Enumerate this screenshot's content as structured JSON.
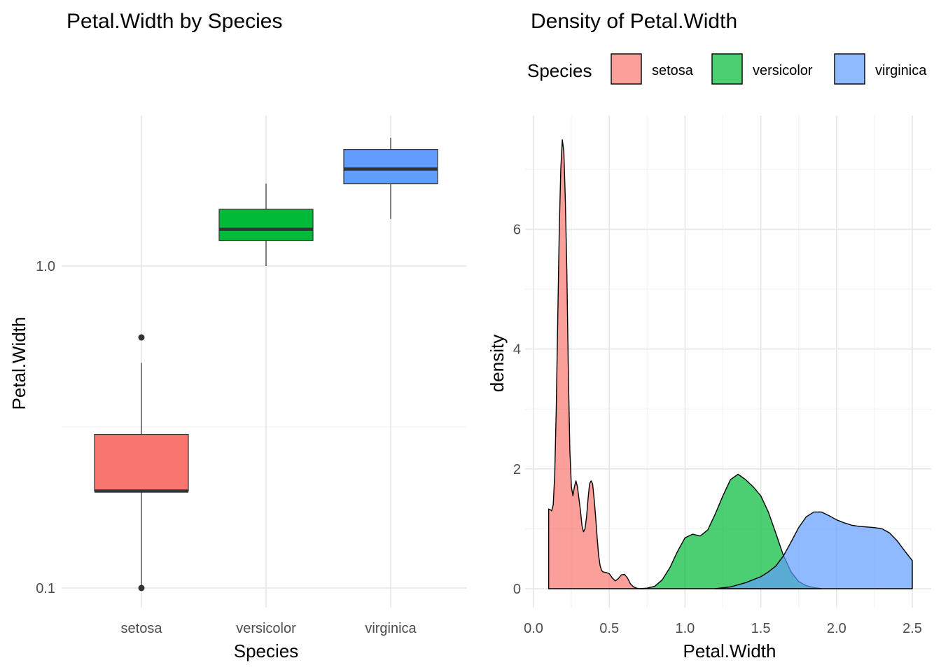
{
  "chart_data": [
    {
      "type": "box",
      "title": "Petal.Width by Species",
      "xlabel": "Species",
      "ylabel": "Petal.Width",
      "y_scale": "log10",
      "yticks": [
        0.1,
        1.0
      ],
      "ytick_labels": [
        "0.1",
        "1.0"
      ],
      "categories": [
        "setosa",
        "versicolor",
        "virginica"
      ],
      "colors": [
        "#F8766D",
        "#00BA38",
        "#619CFF"
      ],
      "boxes": [
        {
          "name": "setosa",
          "min": 0.1,
          "q1": 0.2,
          "median": 0.2,
          "q3": 0.3,
          "max": 0.5,
          "outliers": [
            0.6,
            0.1
          ]
        },
        {
          "name": "versicolor",
          "min": 1.0,
          "q1": 1.2,
          "median": 1.3,
          "q3": 1.5,
          "max": 1.8,
          "outliers": []
        },
        {
          "name": "virginica",
          "min": 1.4,
          "q1": 1.8,
          "median": 2.0,
          "q3": 2.3,
          "max": 2.5,
          "outliers": []
        }
      ],
      "grid": true
    },
    {
      "type": "area",
      "title": "Density of Petal.Width",
      "xlabel": "Petal.Width",
      "ylabel": "density",
      "xlim": [
        0.0,
        2.5
      ],
      "ylim": [
        0,
        7.5
      ],
      "xticks": [
        0.0,
        0.5,
        1.0,
        1.5,
        2.0,
        2.5
      ],
      "xtick_labels": [
        "0.0",
        "0.5",
        "1.0",
        "1.5",
        "2.0",
        "2.5"
      ],
      "yticks": [
        0,
        2,
        4,
        6
      ],
      "ytick_labels": [
        "0",
        "2",
        "4",
        "6"
      ],
      "legend": {
        "title": "Species",
        "position": "top",
        "entries": [
          "setosa",
          "versicolor",
          "virginica"
        ]
      },
      "grid": true,
      "series": [
        {
          "name": "setosa",
          "color": "#F8766D",
          "points": [
            [
              0.1,
              1.33
            ],
            [
              0.11,
              1.32
            ],
            [
              0.12,
              1.3
            ],
            [
              0.13,
              1.4
            ],
            [
              0.14,
              1.9
            ],
            [
              0.15,
              3.0
            ],
            [
              0.16,
              4.5
            ],
            [
              0.17,
              6.0
            ],
            [
              0.18,
              7.0
            ],
            [
              0.19,
              7.49
            ],
            [
              0.2,
              7.3
            ],
            [
              0.21,
              6.5
            ],
            [
              0.22,
              5.3
            ],
            [
              0.23,
              3.6
            ],
            [
              0.24,
              2.3
            ],
            [
              0.25,
              1.7
            ],
            [
              0.26,
              1.55
            ],
            [
              0.27,
              1.7
            ],
            [
              0.28,
              1.8
            ],
            [
              0.29,
              1.7
            ],
            [
              0.3,
              1.5
            ],
            [
              0.31,
              1.3
            ],
            [
              0.32,
              1.05
            ],
            [
              0.33,
              0.95
            ],
            [
              0.34,
              1.0
            ],
            [
              0.35,
              1.2
            ],
            [
              0.36,
              1.5
            ],
            [
              0.37,
              1.75
            ],
            [
              0.38,
              1.8
            ],
            [
              0.39,
              1.75
            ],
            [
              0.4,
              1.5
            ],
            [
              0.41,
              1.2
            ],
            [
              0.42,
              0.85
            ],
            [
              0.43,
              0.55
            ],
            [
              0.44,
              0.38
            ],
            [
              0.45,
              0.3
            ],
            [
              0.46,
              0.28
            ],
            [
              0.48,
              0.27
            ],
            [
              0.5,
              0.25
            ],
            [
              0.52,
              0.18
            ],
            [
              0.54,
              0.13
            ],
            [
              0.56,
              0.17
            ],
            [
              0.58,
              0.23
            ],
            [
              0.6,
              0.24
            ],
            [
              0.62,
              0.18
            ],
            [
              0.64,
              0.08
            ],
            [
              0.66,
              0.03
            ],
            [
              0.68,
              0.01
            ],
            [
              0.7,
              0.0
            ],
            [
              0.73,
              0.0
            ]
          ]
        },
        {
          "name": "versicolor",
          "color": "#00BA38",
          "points": [
            [
              0.7,
              0.0
            ],
            [
              0.75,
              0.01
            ],
            [
              0.8,
              0.04
            ],
            [
              0.85,
              0.15
            ],
            [
              0.9,
              0.35
            ],
            [
              0.95,
              0.62
            ],
            [
              1.0,
              0.85
            ],
            [
              1.05,
              0.91
            ],
            [
              1.1,
              0.88
            ],
            [
              1.15,
              0.98
            ],
            [
              1.2,
              1.25
            ],
            [
              1.25,
              1.55
            ],
            [
              1.3,
              1.82
            ],
            [
              1.35,
              1.91
            ],
            [
              1.4,
              1.82
            ],
            [
              1.45,
              1.7
            ],
            [
              1.5,
              1.55
            ],
            [
              1.55,
              1.28
            ],
            [
              1.6,
              0.92
            ],
            [
              1.65,
              0.55
            ],
            [
              1.7,
              0.28
            ],
            [
              1.75,
              0.12
            ],
            [
              1.8,
              0.05
            ],
            [
              1.85,
              0.02
            ],
            [
              1.9,
              0.0
            ]
          ]
        },
        {
          "name": "virginica",
          "color": "#619CFF",
          "points": [
            [
              1.2,
              0.0
            ],
            [
              1.3,
              0.03
            ],
            [
              1.4,
              0.1
            ],
            [
              1.5,
              0.2
            ],
            [
              1.55,
              0.28
            ],
            [
              1.6,
              0.38
            ],
            [
              1.65,
              0.55
            ],
            [
              1.7,
              0.78
            ],
            [
              1.75,
              1.02
            ],
            [
              1.8,
              1.2
            ],
            [
              1.85,
              1.28
            ],
            [
              1.9,
              1.28
            ],
            [
              1.95,
              1.22
            ],
            [
              2.0,
              1.15
            ],
            [
              2.05,
              1.1
            ],
            [
              2.1,
              1.06
            ],
            [
              2.15,
              1.04
            ],
            [
              2.2,
              1.03
            ],
            [
              2.25,
              1.02
            ],
            [
              2.3,
              1.0
            ],
            [
              2.35,
              0.93
            ],
            [
              2.4,
              0.8
            ],
            [
              2.45,
              0.63
            ],
            [
              2.5,
              0.47
            ]
          ]
        }
      ]
    }
  ]
}
